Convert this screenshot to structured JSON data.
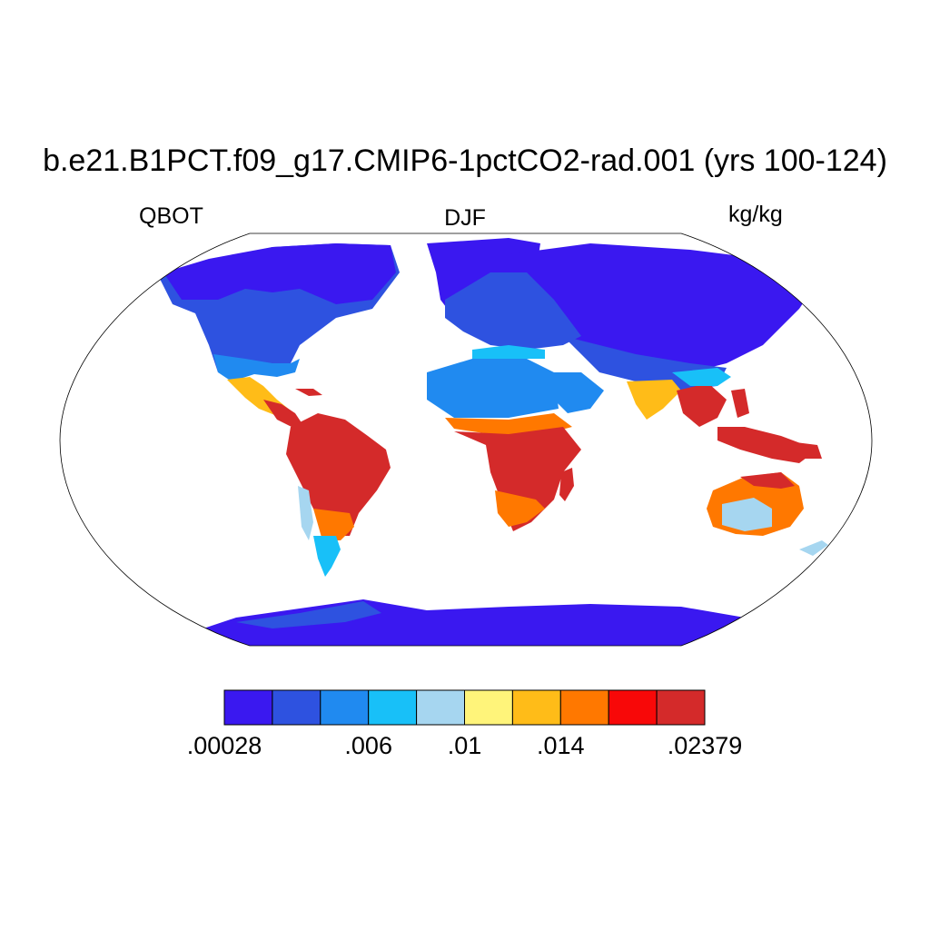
{
  "title": "b.e21.B1PCT.f09_g17.CMIP6-1pctCO2-rad.001 (yrs 100-124)",
  "left_label": "QBOT",
  "center_label": "DJF",
  "right_label": "kg/kg",
  "colorbar": {
    "colors": [
      "#3a18f0",
      "#2e52e0",
      "#208af0",
      "#18c0f8",
      "#a6d6f0",
      "#fff47a",
      "#ffbc18",
      "#ff7800",
      "#f80808",
      "#d42a2a"
    ],
    "tick_labels": [
      ".00028",
      ".006",
      ".01",
      ".014",
      ".02379"
    ],
    "tick_label_positions_after_box": [
      0,
      3,
      5,
      7,
      10
    ]
  }
}
